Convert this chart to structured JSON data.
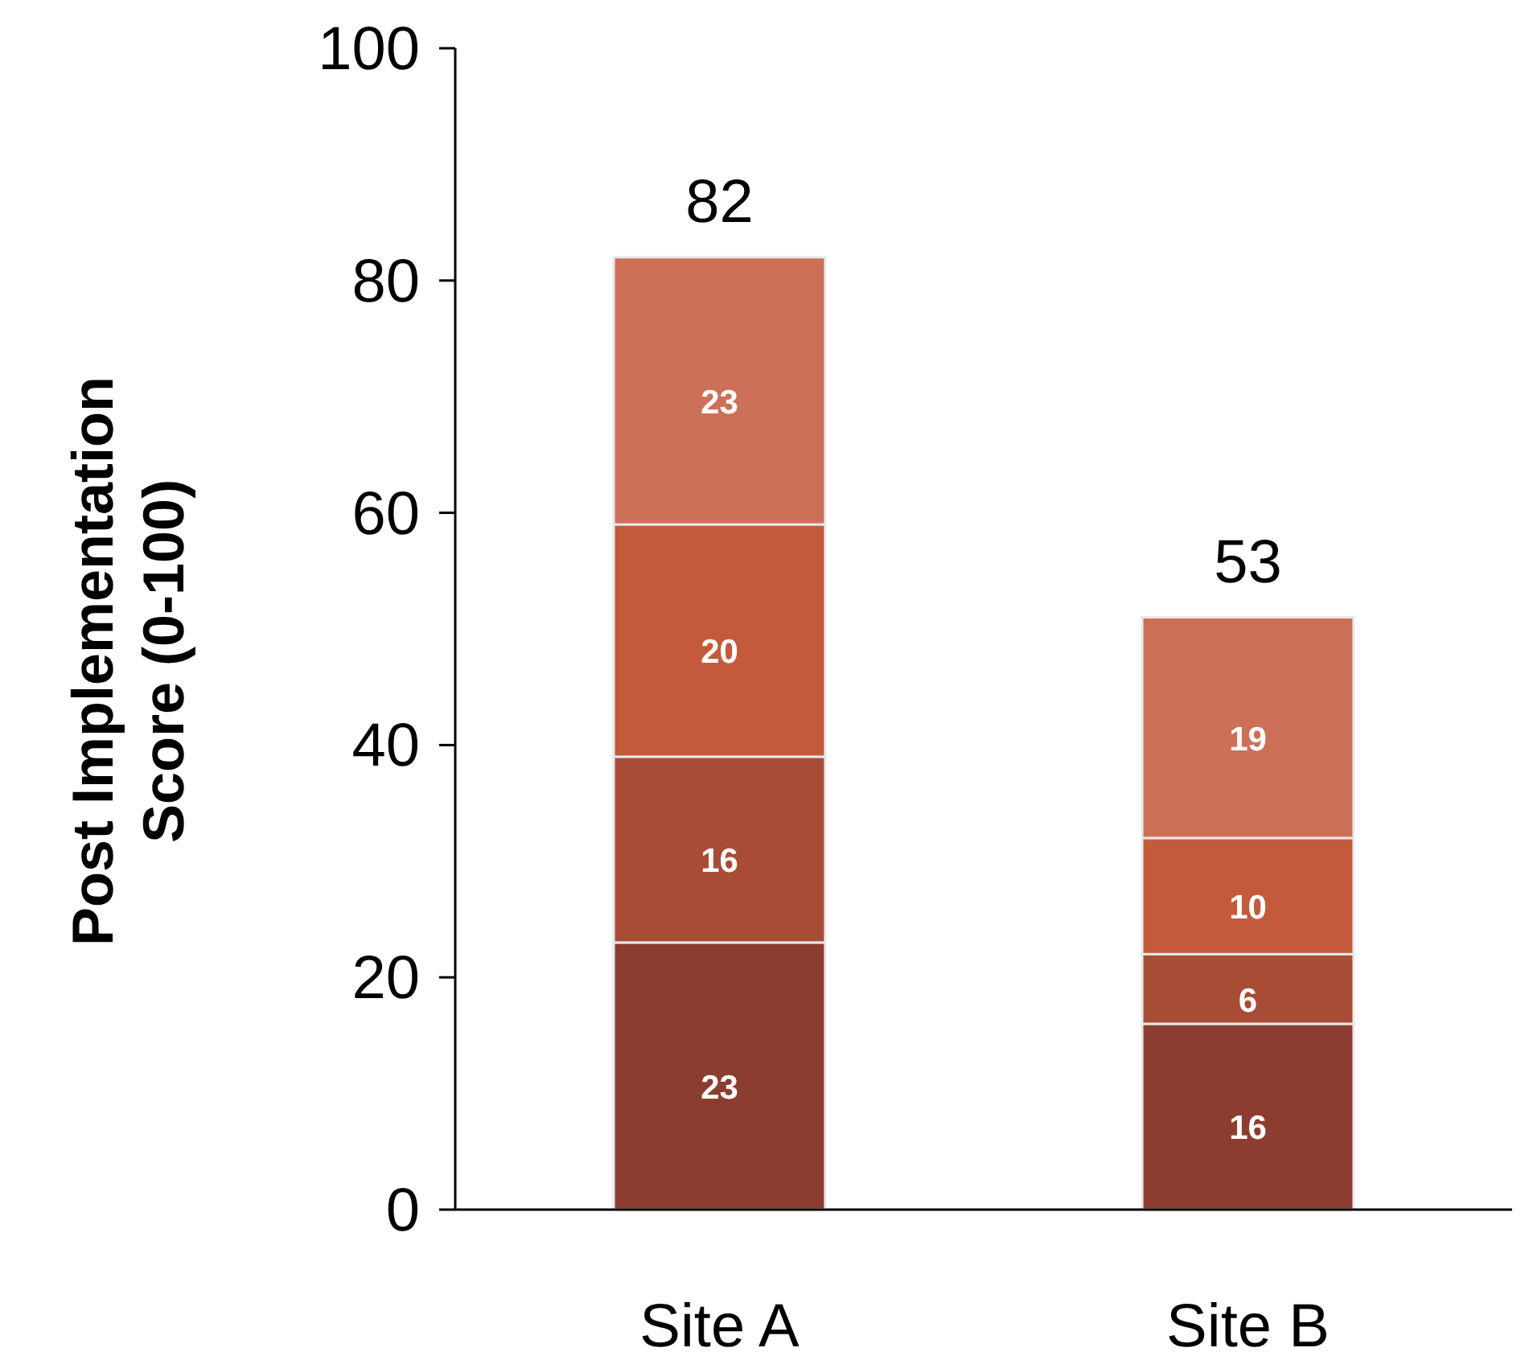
{
  "chart_data": {
    "type": "bar",
    "stacked": true,
    "ylabel": "Post Implementation Score (0-100)",
    "categories": [
      "Site A",
      "Site B"
    ],
    "series": [
      {
        "color": "#8b3e2f",
        "values": [
          23,
          16
        ]
      },
      {
        "color": "#a84c35",
        "values": [
          16,
          6
        ]
      },
      {
        "color": "#c45a3c",
        "values": [
          20,
          10
        ]
      },
      {
        "color": "#cc7058",
        "values": [
          23,
          19
        ]
      }
    ],
    "ylim": [
      0,
      100
    ],
    "yticks": [
      0,
      20,
      40,
      60,
      80,
      100
    ],
    "data_labels": true,
    "totals": [
      "82",
      "53"
    ]
  }
}
